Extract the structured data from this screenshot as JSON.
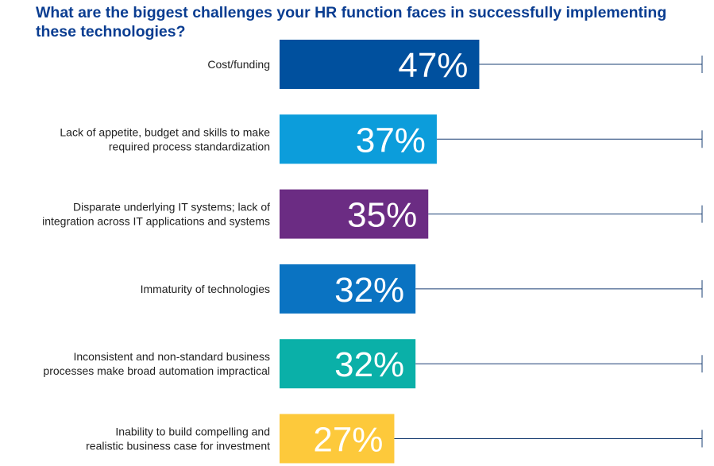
{
  "title": "What are the biggest challenges your HR function faces in successfully implementing these technologies?",
  "chart_data": {
    "type": "bar",
    "orientation": "horizontal",
    "title": "What are the biggest challenges your HR function faces in successfully implementing these technologies?",
    "unit": "%",
    "xlim": [
      0,
      100
    ],
    "grid": false,
    "legend": "none",
    "categories": [
      [
        "Cost/funding"
      ],
      [
        "Lack of appetite, budget and skills to make",
        "required process standardization"
      ],
      [
        "Disparate underlying IT systems; lack of",
        "integration across IT applications and systems"
      ],
      [
        "Immaturity of technologies"
      ],
      [
        "Inconsistent and non-standard business",
        "processes make broad automation impractical"
      ],
      [
        "Inability to build compelling and",
        "realistic business case for investment"
      ]
    ],
    "values": [
      47,
      37,
      35,
      32,
      32,
      27
    ],
    "value_labels": [
      "47%",
      "37%",
      "35%",
      "32%",
      "32%",
      "27%"
    ],
    "colors": [
      "#00509e",
      "#0c9ddb",
      "#6b2c83",
      "#0a73c2",
      "#0ab0a8",
      "#fdc93b"
    ],
    "track_color": "#1a3f73",
    "title_color": "#0a3d91"
  }
}
